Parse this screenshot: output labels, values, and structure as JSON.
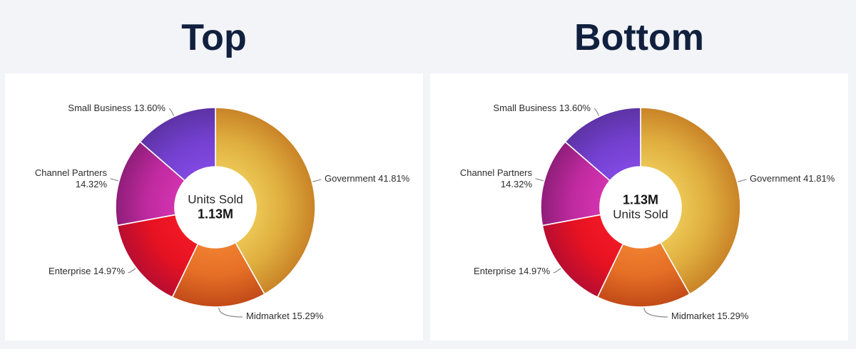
{
  "theme": {
    "page_background": "#f2f4f8",
    "panel_background": "#ffffff",
    "title_color": "#12203f",
    "label_color": "#2d2d2d",
    "callout_line_color": "#8a8a8a",
    "slice_separator_color": "#ffffff"
  },
  "chart_data": [
    {
      "type": "pie",
      "subtype": "donut",
      "title": "Top",
      "categories": [
        "Government",
        "Midmarket",
        "Enterprise",
        "Channel Partners",
        "Small Business"
      ],
      "values": [
        41.81,
        15.29,
        14.97,
        14.32,
        13.6
      ],
      "value_unit": "percent",
      "percent_labels": [
        "41.81%",
        "15.29%",
        "14.97%",
        "14.32%",
        "13.60%"
      ],
      "start_angle_deg": 0,
      "direction": "clockwise",
      "legend": "callout-labels",
      "center_lines": [
        {
          "text": "Units Sold",
          "bold": false
        },
        {
          "text": "1.13M",
          "bold": true
        }
      ],
      "colors": [
        {
          "inner": "#ecc755",
          "mid": "#dfae3f",
          "outer": "#c98327"
        },
        {
          "inner": "#f08030",
          "mid": "#e56f26",
          "outer": "#c24a18"
        },
        {
          "inner": "#f21825",
          "mid": "#e61222",
          "outer": "#b80d31"
        },
        {
          "inner": "#d233af",
          "mid": "#c02aa0",
          "outer": "#8f1e79"
        },
        {
          "inner": "#8149e2",
          "mid": "#7440d0",
          "outer": "#5c33a4"
        }
      ]
    },
    {
      "type": "pie",
      "subtype": "donut",
      "title": "Bottom",
      "categories": [
        "Government",
        "Midmarket",
        "Enterprise",
        "Channel Partners",
        "Small Business"
      ],
      "values": [
        41.81,
        15.29,
        14.97,
        14.32,
        13.6
      ],
      "value_unit": "percent",
      "percent_labels": [
        "41.81%",
        "15.29%",
        "14.97%",
        "14.32%",
        "13.60%"
      ],
      "start_angle_deg": 0,
      "direction": "clockwise",
      "legend": "callout-labels",
      "center_lines": [
        {
          "text": "1.13M",
          "bold": true
        },
        {
          "text": "Units Sold",
          "bold": false
        }
      ],
      "colors": [
        {
          "inner": "#ecc755",
          "mid": "#dfae3f",
          "outer": "#c98327"
        },
        {
          "inner": "#f08030",
          "mid": "#e56f26",
          "outer": "#c24a18"
        },
        {
          "inner": "#f21825",
          "mid": "#e61222",
          "outer": "#b80d31"
        },
        {
          "inner": "#d233af",
          "mid": "#c02aa0",
          "outer": "#8f1e79"
        },
        {
          "inner": "#8149e2",
          "mid": "#7440d0",
          "outer": "#5c33a4"
        }
      ]
    }
  ]
}
